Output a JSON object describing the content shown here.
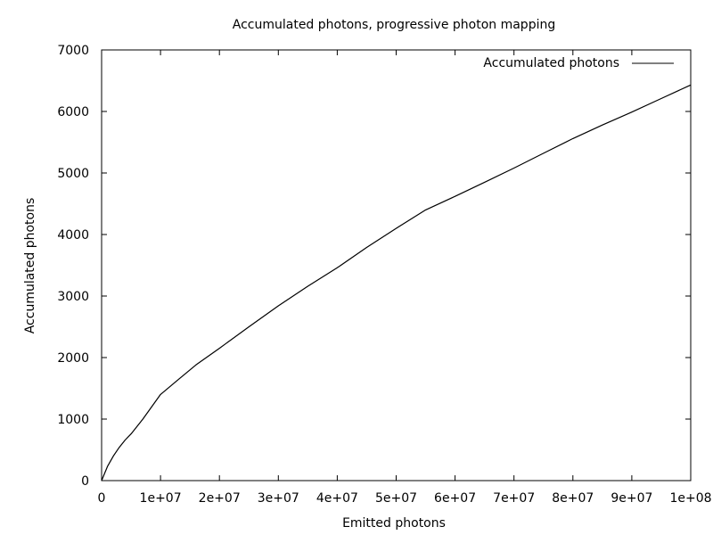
{
  "chart_data": {
    "type": "line",
    "title": "Accumulated photons, progressive photon mapping",
    "xlabel": "Emitted photons",
    "ylabel": "Accumulated photons",
    "xlim": [
      0,
      100000000
    ],
    "ylim": [
      0,
      7000
    ],
    "xticks": [
      0,
      10000000,
      20000000,
      30000000,
      40000000,
      50000000,
      60000000,
      70000000,
      80000000,
      90000000,
      100000000
    ],
    "xtick_labels": [
      "0",
      "1e+07",
      "2e+07",
      "3e+07",
      "4e+07",
      "5e+07",
      "6e+07",
      "7e+07",
      "8e+07",
      "9e+07",
      "1e+08"
    ],
    "yticks": [
      0,
      1000,
      2000,
      3000,
      4000,
      5000,
      6000,
      7000
    ],
    "ytick_labels": [
      "0",
      "1000",
      "2000",
      "3000",
      "4000",
      "5000",
      "6000",
      "7000"
    ],
    "grid": false,
    "legend": "top-right",
    "series": [
      {
        "name": "Accumulated photons",
        "color": "#000000",
        "x": [
          0,
          1000000,
          2000000,
          3000000,
          4000000,
          5000000,
          7000000,
          10000000,
          13000000,
          16000000,
          20000000,
          25000000,
          30000000,
          35000000,
          40000000,
          45000000,
          50000000,
          55000000,
          60000000,
          65000000,
          70000000,
          75000000,
          80000000,
          85000000,
          90000000,
          95000000,
          100000000
        ],
        "y": [
          0,
          230,
          400,
          540,
          660,
          760,
          1000,
          1400,
          1640,
          1880,
          2150,
          2500,
          2840,
          3160,
          3460,
          3790,
          4100,
          4400,
          4620,
          4850,
          5080,
          5320,
          5560,
          5780,
          5990,
          6210,
          6430
        ]
      }
    ]
  }
}
